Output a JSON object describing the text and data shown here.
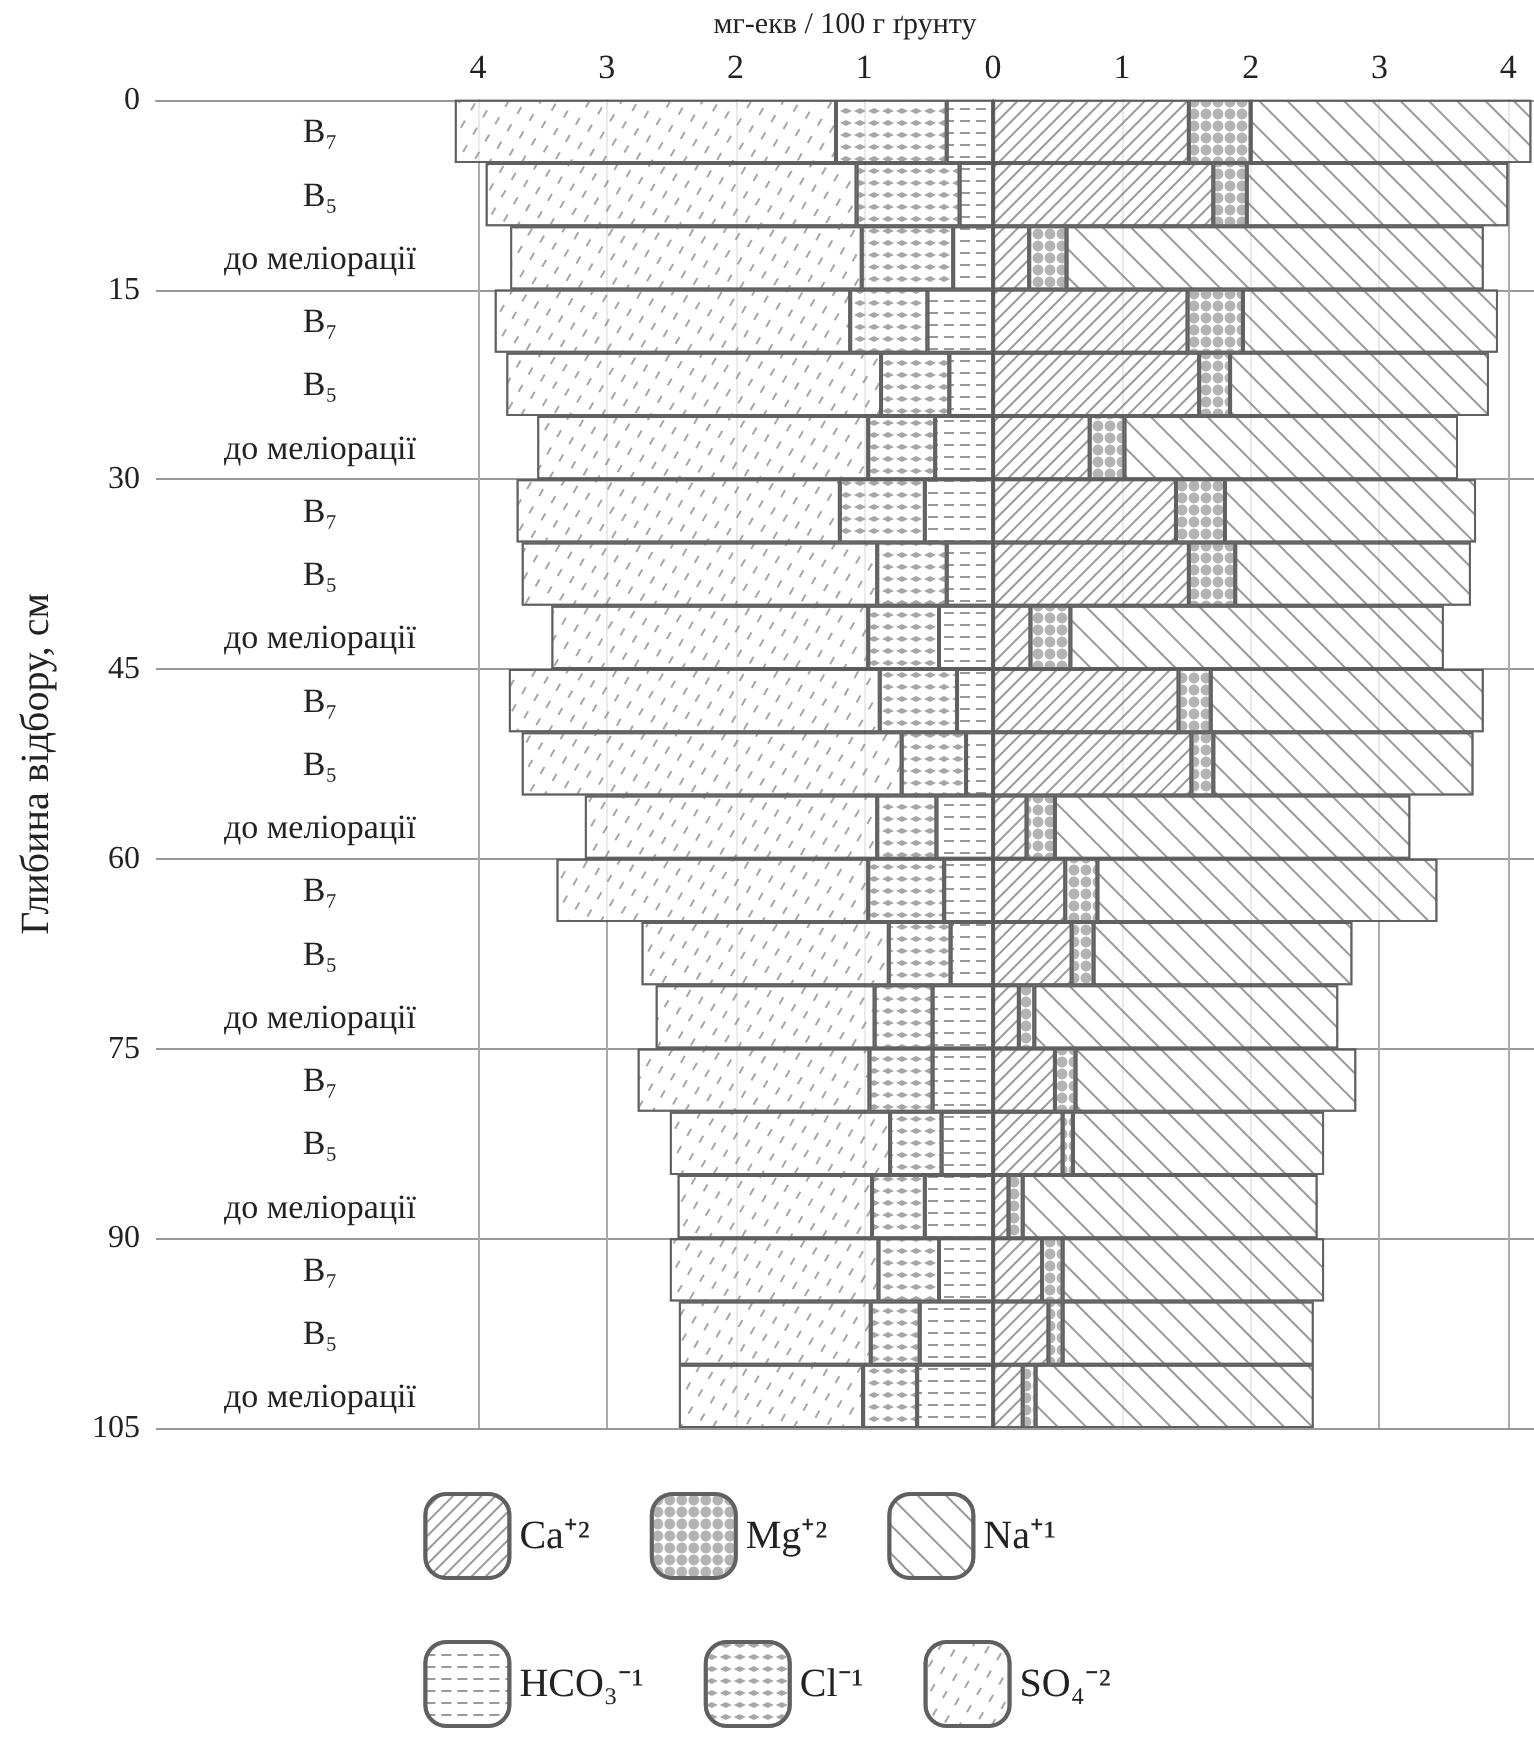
{
  "chart_data": {
    "type": "bar",
    "orientation": "horizontal",
    "stacked": true,
    "xlabel": "мг-екв / 100 г ґрунту",
    "y2label": "Глибина відбору, см",
    "categories": [
      "В₇",
      "В₅",
      "до меліорації",
      "В₇",
      "В₅",
      "до меліорації",
      "В₇",
      "В₅",
      "до меліорації",
      "В₇",
      "В₅",
      "до меліорації",
      "В₇",
      "В₅",
      "до меліорації",
      "В₇",
      "В₅",
      "до меліорації",
      "В₇",
      "В₅",
      "до меліорації"
    ],
    "xlim": [
      -6.5,
      4.2
    ],
    "xticks": [
      {
        "value": -4,
        "label": "4"
      },
      {
        "value": -3,
        "label": "3"
      },
      {
        "value": -2,
        "label": "2"
      },
      {
        "value": -1,
        "label": "1"
      },
      0,
      1,
      2,
      3,
      4
    ],
    "y2lim": [
      105,
      0
    ],
    "y2ticks": [
      0,
      15,
      30,
      45,
      60,
      75,
      90,
      105
    ],
    "grid": true,
    "legend": "bottom",
    "series": [
      {
        "name": "Ca⁺²",
        "color": "#ffffff",
        "values": [
          1.52,
          1.71,
          0.28,
          1.51,
          1.6,
          0.75,
          1.42,
          1.52,
          0.29,
          1.44,
          1.54,
          0.26,
          0.56,
          0.61,
          0.2,
          0.48,
          0.54,
          0.12,
          0.38,
          0.43,
          0.23
        ]
      },
      {
        "name": "Mg⁺²",
        "color": "#ffffff",
        "values": [
          0.48,
          0.26,
          0.29,
          0.43,
          0.24,
          0.27,
          0.38,
          0.36,
          0.31,
          0.25,
          0.17,
          0.22,
          0.25,
          0.17,
          0.12,
          0.16,
          0.08,
          0.11,
          0.16,
          0.11,
          0.1
        ]
      },
      {
        "name": "Na⁺¹",
        "color": "#ffffff",
        "values": [
          2.18,
          2.03,
          3.24,
          1.98,
          2.01,
          2.59,
          1.95,
          1.83,
          2.9,
          2.12,
          2.02,
          2.76,
          2.64,
          2.01,
          2.36,
          2.18,
          1.95,
          2.29,
          2.03,
          1.95,
          2.16
        ]
      },
      {
        "name": "HCO₃⁻¹",
        "color": "#ffffff",
        "values": [
          -0.36,
          -0.26,
          -0.31,
          -0.51,
          -0.34,
          -0.45,
          -0.53,
          -0.36,
          -0.42,
          -0.28,
          -0.21,
          -0.44,
          -0.38,
          -0.33,
          -0.47,
          -0.47,
          -0.4,
          -0.53,
          -0.42,
          -0.57,
          -0.59
        ]
      },
      {
        "name": "Cl⁻¹",
        "color": "#ffffff",
        "values": [
          -0.86,
          -0.8,
          -0.71,
          -0.6,
          -0.53,
          -0.52,
          -0.66,
          -0.54,
          -0.55,
          -0.6,
          -0.5,
          -0.46,
          -0.59,
          -0.48,
          -0.45,
          -0.49,
          -0.4,
          -0.41,
          -0.47,
          -0.38,
          -0.42
        ]
      },
      {
        "name": "SO₄⁻²",
        "color": "#ffffff",
        "values": [
          -2.96,
          -2.88,
          -2.73,
          -2.76,
          -2.91,
          -2.57,
          -2.51,
          -2.76,
          -2.46,
          -2.88,
          -2.95,
          -2.27,
          -2.42,
          -1.92,
          -1.7,
          -1.8,
          -1.71,
          -1.51,
          -1.62,
          -1.49,
          -1.43
        ]
      }
    ]
  }
}
